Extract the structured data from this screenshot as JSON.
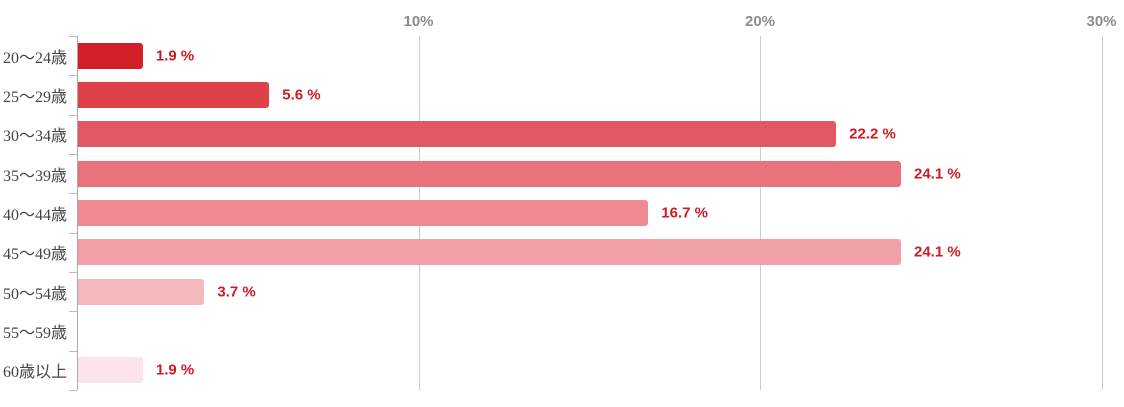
{
  "chart_data": {
    "type": "bar",
    "orientation": "horizontal",
    "title": "",
    "xlabel": "",
    "ylabel": "",
    "categories": [
      "20〜24歳",
      "25〜29歳",
      "30〜34歳",
      "35〜39歳",
      "40〜44歳",
      "45〜49歳",
      "50〜54歳",
      "55〜59歳",
      "60歳以上"
    ],
    "values": [
      1.9,
      5.6,
      22.2,
      24.1,
      16.7,
      24.1,
      3.7,
      0,
      1.9
    ],
    "value_labels": [
      "1.9 %",
      "5.6 %",
      "22.2 %",
      "24.1 %",
      "16.7 %",
      "24.1 %",
      "3.7 %",
      "",
      "1.9 %"
    ],
    "bar_colors": [
      "#d41e28",
      "#df4049",
      "#e25761",
      "#ea727c",
      "#ee8a92",
      "#f0a0a6",
      "#f4b8bd",
      "",
      "#fae4e7"
    ],
    "x_axis": {
      "tick_labels": [
        "10%",
        "20%",
        "30%"
      ],
      "tick_values": [
        10,
        20,
        30
      ],
      "position": "top"
    },
    "xlim": [
      0,
      30.6
    ],
    "grid": true,
    "legend": "none",
    "colors": {
      "value_label": "#cb1b23",
      "axis_label": "#8c8c8c",
      "category_label": "#444444",
      "gridline": "#cccccc",
      "axis_line": "#aaaaaa"
    }
  }
}
